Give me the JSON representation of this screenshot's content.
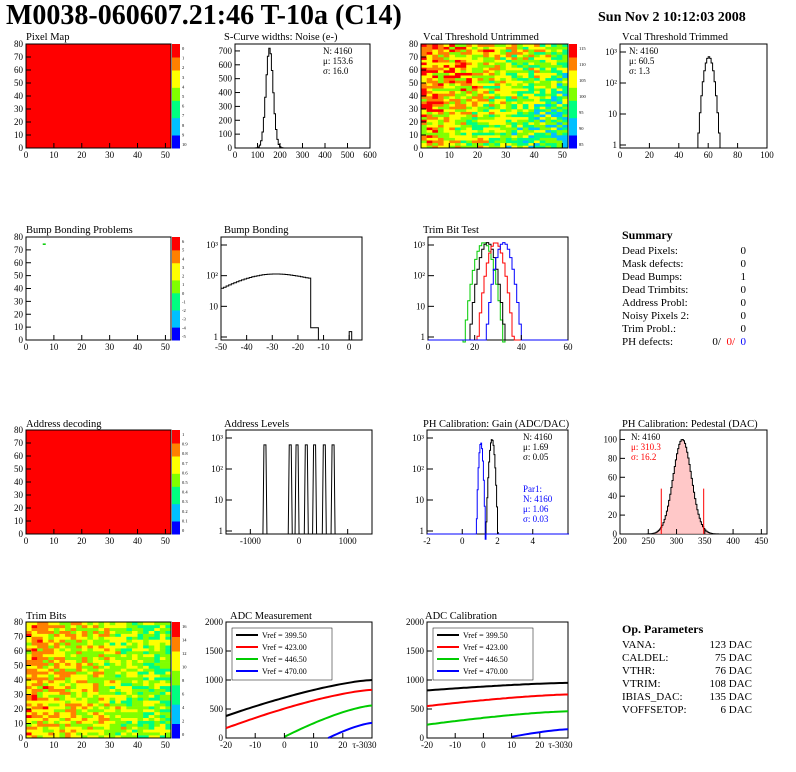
{
  "header": {
    "title": "M0038-060607.21:46 T-10a (C14)",
    "date": "Sun Nov  2 10:12:03 2008"
  },
  "colors": {
    "red": "#ff0000",
    "green": "#00cc00",
    "blue": "#0000ff",
    "black": "#000000"
  },
  "chart_data": [
    {
      "id": "pixel-map",
      "type": "heatmap",
      "title": "Pixel Map",
      "xlim": [
        0,
        52
      ],
      "ylim": [
        0,
        80
      ],
      "xticks": [
        "0",
        "10",
        "20",
        "30",
        "40",
        "50"
      ],
      "yticks": [
        "0",
        "10",
        "20",
        "30",
        "40",
        "50",
        "60",
        "70",
        "80"
      ],
      "fill": "uniform-red",
      "zticks": [
        "0",
        "1",
        "2",
        "3",
        "4",
        "5",
        "6",
        "7",
        "8",
        "9",
        "10"
      ]
    },
    {
      "id": "scurve",
      "type": "bar",
      "title": "S-Curve widths: Noise (e-)",
      "xlim": [
        0,
        600
      ],
      "ylim": [
        0,
        750
      ],
      "xticks": [
        "0",
        "100",
        "200",
        "300",
        "400",
        "500",
        "600"
      ],
      "yticks": [
        "0",
        "100",
        "200",
        "300",
        "400",
        "500",
        "600",
        "700"
      ],
      "stats": [
        "N: 4160",
        "μ: 153.6",
        "σ: 16.0"
      ],
      "mean": 153.6,
      "sigma": 16.0,
      "peak": 720
    },
    {
      "id": "vcal-untrimmed",
      "type": "heatmap",
      "title": "Vcal Threshold Untrimmed",
      "xlim": [
        0,
        52
      ],
      "ylim": [
        0,
        80
      ],
      "xticks": [
        "0",
        "10",
        "20",
        "30",
        "40",
        "50"
      ],
      "yticks": [
        "0",
        "10",
        "20",
        "30",
        "40",
        "50",
        "60",
        "70",
        "80"
      ],
      "zticks": [
        "115",
        "110",
        "105",
        "100",
        "95",
        "90",
        "85"
      ]
    },
    {
      "id": "vcal-trimmed",
      "type": "bar",
      "title": "Vcal Threshold Trimmed",
      "scale": "log",
      "xlim": [
        0,
        100
      ],
      "xticks": [
        "0",
        "20",
        "40",
        "60",
        "80",
        "100"
      ],
      "yticks": [
        "1",
        "10",
        "10²",
        "10³"
      ],
      "stats": [
        "N: 4160",
        "μ:  60.5",
        "σ:   1.3"
      ],
      "mean": 60.5,
      "sigma": 1.3,
      "peak": 700
    },
    {
      "id": "bump-problems",
      "type": "heatmap",
      "title": "Bump Bonding Problems",
      "xlim": [
        0,
        52
      ],
      "ylim": [
        0,
        80
      ],
      "xticks": [
        "0",
        "10",
        "20",
        "30",
        "40",
        "50"
      ],
      "yticks": [
        "0",
        "10",
        "20",
        "30",
        "40",
        "50",
        "60",
        "70",
        "80"
      ],
      "zticks": [
        "6",
        "5",
        "4",
        "3",
        "2",
        "1",
        "0",
        "-1",
        "-2",
        "-3",
        "-4",
        "-5"
      ],
      "points": [
        [
          6,
          75
        ]
      ]
    },
    {
      "id": "bump-bonding",
      "type": "bar",
      "title": "Bump Bonding",
      "scale": "log",
      "xlim": [
        -50,
        5
      ],
      "xticks": [
        "-50",
        "-40",
        "-30",
        "-20",
        "-10",
        "0"
      ],
      "yticks": [
        "1",
        "10",
        "10²",
        "10³"
      ]
    },
    {
      "id": "trim-bit",
      "type": "line",
      "title": "Trim Bit Test",
      "scale": "log",
      "xlim": [
        0,
        60
      ],
      "xticks": [
        "0",
        "20",
        "40",
        "60"
      ],
      "yticks": [
        "1",
        "10",
        "10²",
        "10³"
      ],
      "series": [
        {
          "color": "#00cc00",
          "mean": 24,
          "sigma": 2.2
        },
        {
          "color": "#000000",
          "mean": 25.5,
          "sigma": 2.0
        },
        {
          "color": "#ff0000",
          "mean": 29,
          "sigma": 2.0
        },
        {
          "color": "#0000ff",
          "mean": 32.5,
          "sigma": 2.0
        }
      ]
    },
    {
      "id": "address-decoding",
      "type": "heatmap",
      "title": "Address decoding",
      "xlim": [
        0,
        52
      ],
      "ylim": [
        0,
        80
      ],
      "xticks": [
        "0",
        "10",
        "20",
        "30",
        "40",
        "50"
      ],
      "yticks": [
        "0",
        "10",
        "20",
        "30",
        "40",
        "50",
        "60",
        "70",
        "80"
      ],
      "fill": "uniform-red",
      "zticks": [
        "1",
        "0.9",
        "0.8",
        "0.7",
        "0.6",
        "0.5",
        "0.4",
        "0.3",
        "0.2",
        "0.1",
        "0"
      ]
    },
    {
      "id": "address-levels",
      "type": "bar",
      "title": "Address Levels",
      "scale": "log",
      "xlim": [
        -1500,
        1500
      ],
      "xticks": [
        "-1000",
        "0",
        "1000"
      ],
      "yticks": [
        "1",
        "10",
        "10²",
        "10³"
      ],
      "peaks": [
        -700,
        -180,
        -40,
        150,
        320,
        520,
        700
      ]
    },
    {
      "id": "ph-gain",
      "type": "bar",
      "title": "PH Calibration: Gain (ADC/DAC)",
      "scale": "log",
      "xlim": [
        -2,
        6
      ],
      "xticks": [
        "-2",
        "0",
        "2",
        "4"
      ],
      "yticks": [
        "1",
        "10",
        "10²",
        "10³"
      ],
      "stats": [
        "N: 4160",
        "μ: 1.69",
        "σ: 0.05"
      ],
      "fit": [
        "Par1:",
        "N: 4160",
        "μ: 1.06",
        "σ: 0.03"
      ],
      "mean_black": 1.69,
      "mean_blue": 1.06
    },
    {
      "id": "ph-pedestal",
      "type": "bar",
      "title": "PH Calibration: Pedestal (DAC)",
      "xlim": [
        200,
        460
      ],
      "ylim": [
        0,
        110
      ],
      "xticks": [
        "200",
        "250",
        "300",
        "350",
        "400",
        "450"
      ],
      "yticks": [
        "0",
        "20",
        "40",
        "60",
        "80",
        "100"
      ],
      "stats": [
        "N: 4160"
      ],
      "redstats": [
        "μ: 310.3",
        "σ: 16.2"
      ],
      "mean": 310.3,
      "sigma": 16.2,
      "peak": 100
    },
    {
      "id": "trim-bits",
      "type": "heatmap",
      "title": "Trim Bits",
      "xlim": [
        0,
        52
      ],
      "ylim": [
        0,
        80
      ],
      "xticks": [
        "0",
        "10",
        "20",
        "30",
        "40",
        "50"
      ],
      "yticks": [
        "0",
        "10",
        "20",
        "30",
        "40",
        "50",
        "60",
        "70",
        "80"
      ],
      "zticks": [
        "16",
        "14",
        "12",
        "10",
        "8",
        "6",
        "4",
        "2",
        "0"
      ]
    },
    {
      "id": "adc-measurement",
      "type": "line",
      "title": "ADC Measurement",
      "xlim": [
        -20,
        30
      ],
      "ylim": [
        0,
        2000
      ],
      "xticks": [
        "-20",
        "-10",
        "0",
        "10",
        "20",
        "30"
      ],
      "yticks": [
        "0",
        "500",
        "1000",
        "1500",
        "2000"
      ],
      "xlabel": "τ-30",
      "legend": [
        "Vref = 399.50",
        "Vref = 423.00",
        "Vref = 446.50",
        "Vref = 470.00"
      ],
      "series": [
        {
          "color": "#000000",
          "start": -20,
          "y0": 380,
          "y1": 1000
        },
        {
          "color": "#ff0000",
          "start": -20,
          "y0": 170,
          "y1": 830
        },
        {
          "color": "#00cc00",
          "start": 0,
          "y0": 20,
          "y1": 560
        },
        {
          "color": "#0000ff",
          "start": 15,
          "y0": 0,
          "y1": 260
        }
      ]
    },
    {
      "id": "adc-calibration",
      "type": "line",
      "title": "ADC Calibration",
      "xlim": [
        -20,
        30
      ],
      "ylim": [
        0,
        2000
      ],
      "xticks": [
        "-20",
        "-10",
        "0",
        "10",
        "20",
        "30"
      ],
      "yticks": [
        "0",
        "500",
        "1000",
        "1500",
        "2000"
      ],
      "xlabel": "τ-30",
      "legend": [
        "Vref = 399.50",
        "Vref = 423.00",
        "Vref = 446.50",
        "Vref = 470.00"
      ],
      "series": [
        {
          "color": "#000000",
          "start": -20,
          "y0": 820,
          "y1": 950
        },
        {
          "color": "#ff0000",
          "start": -20,
          "y0": 550,
          "y1": 750
        },
        {
          "color": "#00cc00",
          "start": -20,
          "y0": 230,
          "y1": 460
        },
        {
          "color": "#0000ff",
          "start": 10,
          "y0": 20,
          "y1": 150
        }
      ]
    }
  ],
  "summary": {
    "title": "Summary",
    "rows": [
      {
        "label": "Dead Pixels:",
        "value": "0"
      },
      {
        "label": "Mask defects:",
        "value": "0"
      },
      {
        "label": "Dead Bumps:",
        "value": "1"
      },
      {
        "label": "Dead Trimbits:",
        "value": "0"
      },
      {
        "label": "Address Probl:",
        "value": "0"
      },
      {
        "label": "Noisy Pixels 2:",
        "value": "0"
      },
      {
        "label": "Trim Probl.:",
        "value": "0"
      }
    ],
    "ph": {
      "label": "PH defects:",
      "v1": "0/",
      "v2": "0/",
      "v3": "0"
    }
  },
  "op_params": {
    "title": "Op. Parameters",
    "rows": [
      {
        "label": "VANA:",
        "value": "123 DAC"
      },
      {
        "label": "CALDEL:",
        "value": "75 DAC"
      },
      {
        "label": "VTHR:",
        "value": "76 DAC"
      },
      {
        "label": "VTRIM:",
        "value": "108 DAC"
      },
      {
        "label": "IBIAS_DAC:",
        "value": "135 DAC"
      },
      {
        "label": "VOFFSETOP:",
        "value": "6 DAC"
      }
    ]
  }
}
